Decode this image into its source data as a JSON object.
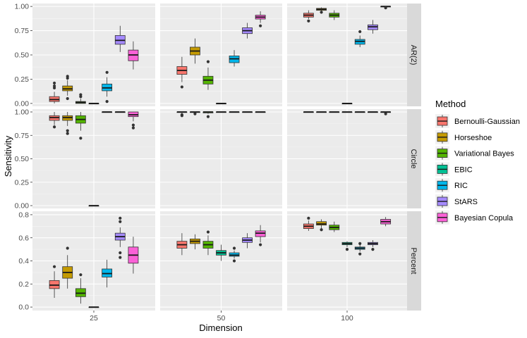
{
  "chart_data": {
    "type": "boxplot",
    "xlabel": "Dimension",
    "ylabel": "Sensitivity",
    "legend_title": "Method",
    "legend_position": "right",
    "columns": [
      "25",
      "50",
      "100"
    ],
    "rows": [
      {
        "label": "AR(2)",
        "ylim": [
          -0.03,
          1.03
        ],
        "ticks": [
          0.0,
          0.25,
          0.5,
          0.75,
          1.0
        ],
        "tick_labels": [
          "0.00",
          "0.25",
          "0.50",
          "0.75",
          "1.00"
        ]
      },
      {
        "label": "Circle",
        "ylim": [
          -0.03,
          1.03
        ],
        "ticks": [
          0.0,
          0.25,
          0.5,
          0.75,
          1.0
        ],
        "tick_labels": [
          "0.00",
          "0.25",
          "0.50",
          "0.75",
          "1.00"
        ]
      },
      {
        "label": "Percent",
        "ylim": [
          -0.03,
          0.83
        ],
        "ticks": [
          0.0,
          0.2,
          0.4,
          0.6,
          0.8
        ],
        "tick_labels": [
          "0.0",
          "0.2",
          "0.4",
          "0.6",
          "0.8"
        ]
      }
    ],
    "methods": [
      {
        "name": "Bernoulli-Gaussian",
        "color": "#F8766D"
      },
      {
        "name": "Horseshoe",
        "color": "#C49A00"
      },
      {
        "name": "Variational Bayes",
        "color": "#53B400"
      },
      {
        "name": "EBIC",
        "color": "#00C094"
      },
      {
        "name": "RIC",
        "color": "#00B6EB"
      },
      {
        "name": "StARS",
        "color": "#A58AFF"
      },
      {
        "name": "Bayesian Copula",
        "color": "#FB61D7"
      }
    ],
    "boxes": [
      [
        [
          {
            "q1": 0.02,
            "med": 0.04,
            "q3": 0.07,
            "lo": 0.0,
            "hi": 0.12,
            "out": [
              0.16,
              0.18,
              0.21
            ]
          },
          {
            "q1": 0.13,
            "med": 0.15,
            "q3": 0.18,
            "lo": 0.08,
            "hi": 0.24,
            "out": [
              0.26,
              0.28,
              0.05
            ]
          },
          {
            "q1": 0.0,
            "med": 0.01,
            "q3": 0.02,
            "lo": 0.0,
            "hi": 0.05,
            "out": [
              0.07,
              0.09
            ]
          },
          {
            "q1": 0.0,
            "med": 0.0,
            "q3": 0.0,
            "lo": 0.0,
            "hi": 0.0,
            "out": []
          },
          {
            "q1": 0.13,
            "med": 0.16,
            "q3": 0.2,
            "lo": 0.07,
            "hi": 0.27,
            "out": [
              0.32,
              0.02
            ]
          },
          {
            "q1": 0.61,
            "med": 0.65,
            "q3": 0.7,
            "lo": 0.53,
            "hi": 0.8,
            "out": []
          },
          {
            "q1": 0.44,
            "med": 0.5,
            "q3": 0.55,
            "lo": 0.35,
            "hi": 0.64,
            "out": []
          }
        ],
        [
          {
            "q1": 0.3,
            "med": 0.34,
            "q3": 0.38,
            "lo": 0.22,
            "hi": 0.48,
            "out": [
              0.17
            ]
          },
          {
            "q1": 0.5,
            "med": 0.54,
            "q3": 0.58,
            "lo": 0.41,
            "hi": 0.67,
            "out": []
          },
          {
            "q1": 0.2,
            "med": 0.24,
            "q3": 0.28,
            "lo": 0.14,
            "hi": 0.37,
            "out": [
              0.43
            ]
          },
          {
            "q1": 0.0,
            "med": 0.0,
            "q3": 0.0,
            "lo": 0.0,
            "hi": 0.0,
            "out": []
          },
          {
            "q1": 0.42,
            "med": 0.46,
            "q3": 0.49,
            "lo": 0.38,
            "hi": 0.55,
            "out": []
          },
          {
            "q1": 0.72,
            "med": 0.75,
            "q3": 0.78,
            "lo": 0.67,
            "hi": 0.83,
            "out": []
          },
          {
            "q1": 0.87,
            "med": 0.89,
            "q3": 0.91,
            "lo": 0.83,
            "hi": 0.95,
            "out": [
              0.8
            ]
          }
        ],
        [
          {
            "q1": 0.89,
            "med": 0.91,
            "q3": 0.93,
            "lo": 0.87,
            "hi": 0.96,
            "out": [
              0.85
            ]
          },
          {
            "q1": 0.96,
            "med": 0.97,
            "q3": 0.98,
            "lo": 0.95,
            "hi": 0.99,
            "out": [
              0.94
            ]
          },
          {
            "q1": 0.89,
            "med": 0.91,
            "q3": 0.93,
            "lo": 0.86,
            "hi": 0.96,
            "out": []
          },
          {
            "q1": 0.0,
            "med": 0.0,
            "q3": 0.0,
            "lo": 0.0,
            "hi": 0.0,
            "out": []
          },
          {
            "q1": 0.61,
            "med": 0.64,
            "q3": 0.66,
            "lo": 0.58,
            "hi": 0.7,
            "out": [
              0.74
            ]
          },
          {
            "q1": 0.76,
            "med": 0.79,
            "q3": 0.81,
            "lo": 0.72,
            "hi": 0.86,
            "out": []
          },
          {
            "q1": 0.995,
            "med": 1.0,
            "q3": 1.0,
            "lo": 0.99,
            "hi": 1.0,
            "out": [
              0.985
            ]
          }
        ]
      ],
      [
        [
          {
            "q1": 0.91,
            "med": 0.94,
            "q3": 0.96,
            "lo": 0.86,
            "hi": 1.0,
            "out": [
              0.84
            ]
          },
          {
            "q1": 0.91,
            "med": 0.94,
            "q3": 0.96,
            "lo": 0.85,
            "hi": 1.0,
            "out": [
              0.8,
              0.77
            ]
          },
          {
            "q1": 0.88,
            "med": 0.92,
            "q3": 0.96,
            "lo": 0.8,
            "hi": 1.0,
            "out": [
              0.72
            ]
          },
          {
            "q1": 0.0,
            "med": 0.0,
            "q3": 0.0,
            "lo": 0.0,
            "hi": 0.0,
            "out": []
          },
          {
            "q1": 1.0,
            "med": 1.0,
            "q3": 1.0,
            "lo": 1.0,
            "hi": 1.0,
            "out": []
          },
          {
            "q1": 1.0,
            "med": 1.0,
            "q3": 1.0,
            "lo": 1.0,
            "hi": 1.0,
            "out": []
          },
          {
            "q1": 0.95,
            "med": 0.97,
            "q3": 1.0,
            "lo": 0.9,
            "hi": 1.0,
            "out": [
              0.86,
              0.83
            ]
          }
        ],
        [
          {
            "q1": 0.995,
            "med": 1.0,
            "q3": 1.0,
            "lo": 0.98,
            "hi": 1.0,
            "out": [
              0.97,
              0.96
            ]
          },
          {
            "q1": 1.0,
            "med": 1.0,
            "q3": 1.0,
            "lo": 1.0,
            "hi": 1.0,
            "out": [
              0.98
            ]
          },
          {
            "q1": 0.99,
            "med": 1.0,
            "q3": 1.0,
            "lo": 0.98,
            "hi": 1.0,
            "out": [
              0.95
            ]
          },
          {
            "q1": 1.0,
            "med": 1.0,
            "q3": 1.0,
            "lo": 1.0,
            "hi": 1.0,
            "out": []
          },
          {
            "q1": 1.0,
            "med": 1.0,
            "q3": 1.0,
            "lo": 1.0,
            "hi": 1.0,
            "out": []
          },
          {
            "q1": 1.0,
            "med": 1.0,
            "q3": 1.0,
            "lo": 1.0,
            "hi": 1.0,
            "out": []
          },
          {
            "q1": 1.0,
            "med": 1.0,
            "q3": 1.0,
            "lo": 1.0,
            "hi": 1.0,
            "out": []
          }
        ],
        [
          {
            "q1": 1.0,
            "med": 1.0,
            "q3": 1.0,
            "lo": 1.0,
            "hi": 1.0,
            "out": []
          },
          {
            "q1": 1.0,
            "med": 1.0,
            "q3": 1.0,
            "lo": 1.0,
            "hi": 1.0,
            "out": []
          },
          {
            "q1": 1.0,
            "med": 1.0,
            "q3": 1.0,
            "lo": 1.0,
            "hi": 1.0,
            "out": []
          },
          {
            "q1": 1.0,
            "med": 1.0,
            "q3": 1.0,
            "lo": 1.0,
            "hi": 1.0,
            "out": []
          },
          {
            "q1": 1.0,
            "med": 1.0,
            "q3": 1.0,
            "lo": 1.0,
            "hi": 1.0,
            "out": []
          },
          {
            "q1": 1.0,
            "med": 1.0,
            "q3": 1.0,
            "lo": 1.0,
            "hi": 1.0,
            "out": []
          },
          {
            "q1": 1.0,
            "med": 1.0,
            "q3": 1.0,
            "lo": 1.0,
            "hi": 1.0,
            "out": [
              0.98
            ]
          }
        ]
      ],
      [
        [
          {
            "q1": 0.16,
            "med": 0.19,
            "q3": 0.23,
            "lo": 0.08,
            "hi": 0.31,
            "out": [
              0.35
            ]
          },
          {
            "q1": 0.25,
            "med": 0.3,
            "q3": 0.35,
            "lo": 0.16,
            "hi": 0.45,
            "out": [
              0.51
            ]
          },
          {
            "q1": 0.09,
            "med": 0.12,
            "q3": 0.16,
            "lo": 0.03,
            "hi": 0.25,
            "out": [
              0.28
            ]
          },
          {
            "q1": 0.0,
            "med": 0.0,
            "q3": 0.0,
            "lo": 0.0,
            "hi": 0.0,
            "out": []
          },
          {
            "q1": 0.26,
            "med": 0.29,
            "q3": 0.33,
            "lo": 0.17,
            "hi": 0.41,
            "out": []
          },
          {
            "q1": 0.58,
            "med": 0.61,
            "q3": 0.64,
            "lo": 0.52,
            "hi": 0.69,
            "out": [
              0.43,
              0.47,
              0.74,
              0.77
            ]
          },
          {
            "q1": 0.38,
            "med": 0.45,
            "q3": 0.52,
            "lo": 0.29,
            "hi": 0.61,
            "out": []
          }
        ],
        [
          {
            "q1": 0.51,
            "med": 0.54,
            "q3": 0.57,
            "lo": 0.45,
            "hi": 0.64,
            "out": []
          },
          {
            "q1": 0.55,
            "med": 0.57,
            "q3": 0.59,
            "lo": 0.5,
            "hi": 0.63,
            "out": []
          },
          {
            "q1": 0.51,
            "med": 0.54,
            "q3": 0.57,
            "lo": 0.45,
            "hi": 0.62,
            "out": [
              0.65
            ]
          },
          {
            "q1": 0.45,
            "med": 0.47,
            "q3": 0.49,
            "lo": 0.4,
            "hi": 0.54,
            "out": []
          },
          {
            "q1": 0.44,
            "med": 0.45,
            "q3": 0.47,
            "lo": 0.42,
            "hi": 0.49,
            "out": [
              0.51,
              0.4
            ]
          },
          {
            "q1": 0.56,
            "med": 0.58,
            "q3": 0.6,
            "lo": 0.51,
            "hi": 0.64,
            "out": []
          },
          {
            "q1": 0.61,
            "med": 0.64,
            "q3": 0.66,
            "lo": 0.56,
            "hi": 0.71,
            "out": [
              0.54
            ]
          }
        ],
        [
          {
            "q1": 0.68,
            "med": 0.7,
            "q3": 0.72,
            "lo": 0.66,
            "hi": 0.75,
            "out": [
              0.77
            ]
          },
          {
            "q1": 0.71,
            "med": 0.72,
            "q3": 0.74,
            "lo": 0.68,
            "hi": 0.76,
            "out": [
              0.67
            ]
          },
          {
            "q1": 0.67,
            "med": 0.69,
            "q3": 0.71,
            "lo": 0.65,
            "hi": 0.74,
            "out": []
          },
          {
            "q1": 0.54,
            "med": 0.55,
            "q3": 0.56,
            "lo": 0.52,
            "hi": 0.57,
            "out": [
              0.5
            ]
          },
          {
            "q1": 0.5,
            "med": 0.51,
            "q3": 0.52,
            "lo": 0.48,
            "hi": 0.54,
            "out": [
              0.46,
              0.55
            ]
          },
          {
            "q1": 0.54,
            "med": 0.55,
            "q3": 0.56,
            "lo": 0.52,
            "hi": 0.58,
            "out": [
              0.5
            ]
          },
          {
            "q1": 0.72,
            "med": 0.74,
            "q3": 0.76,
            "lo": 0.7,
            "hi": 0.78,
            "out": []
          }
        ]
      ]
    ]
  }
}
